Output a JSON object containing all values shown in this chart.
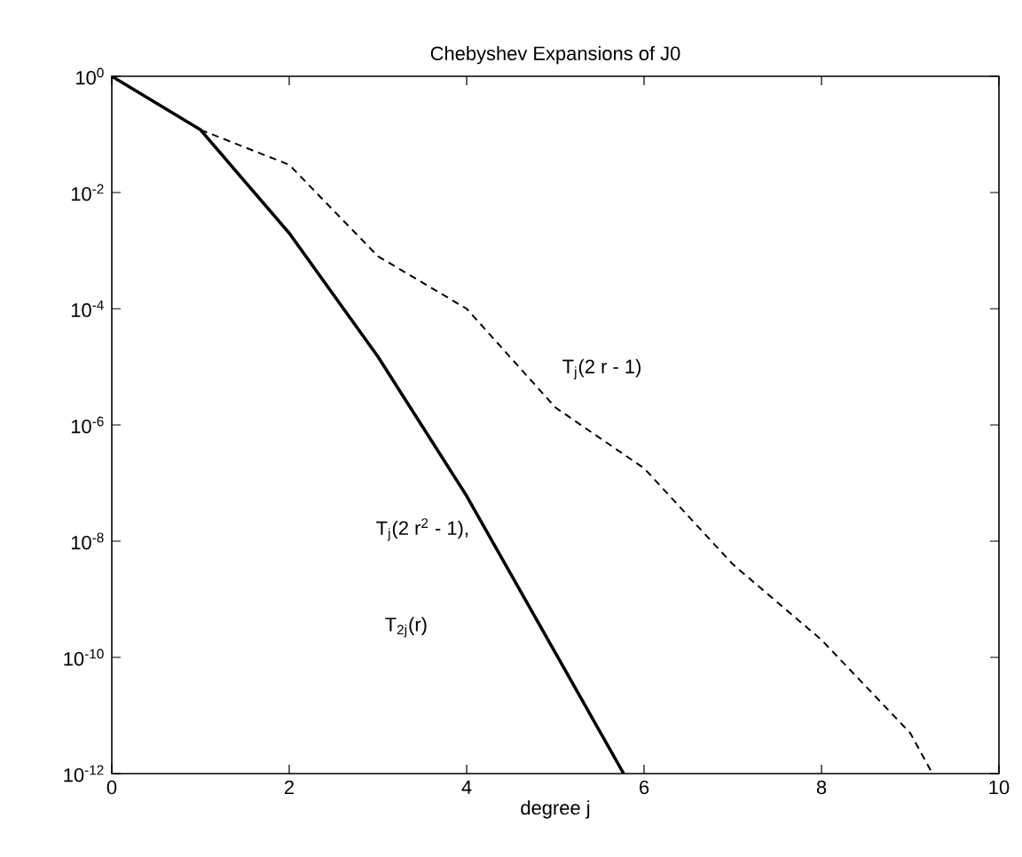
{
  "chart_data": {
    "type": "line",
    "title": "Chebyshev Expansions of J0",
    "xlabel": "degree j",
    "log": "y",
    "grid": false,
    "marker": "none",
    "xlim": [
      0,
      10
    ],
    "xticks": [
      0,
      2,
      4,
      6,
      8,
      10
    ],
    "ylim": [
      1e-12,
      1
    ],
    "yticks": [
      {
        "value": 1e-12,
        "label": "10$^{-12}$"
      },
      {
        "value": 1e-10,
        "label": "10$^{-10}$"
      },
      {
        "value": 1e-08,
        "label": "10$^{-8}$"
      },
      {
        "value": 1e-06,
        "label": "10$^{-6}$"
      },
      {
        "value": 0.0001,
        "label": "10$^{-4}$"
      },
      {
        "value": 0.01,
        "label": "10$^{-2}$"
      },
      {
        "value": 1,
        "label": "10$^{0}$"
      }
    ],
    "series": [
      {
        "color": "#000000",
        "line_style": "solid",
        "x": [
          0,
          1,
          2,
          3,
          4,
          5,
          5.77
        ],
        "values": [
          1,
          0.12,
          0.002,
          1.5e-05,
          6e-08,
          1.2e-10,
          1e-12
        ]
      },
      {
        "color": "#000000",
        "line_style": "dashed",
        "x": [
          1,
          2,
          3,
          4,
          5,
          6,
          7,
          8,
          9,
          9.25
        ],
        "values": [
          0.12,
          0.03,
          0.0008,
          0.0001,
          2e-06,
          1.8e-07,
          4e-09,
          2e-10,
          5e-12,
          1e-12
        ]
      }
    ],
    "annotations": [
      "T$_{j}$(2 r - 1)",
      "T$_{j}$(2 r$^{2}$ - 1),",
      "T$_{2j}$(r)"
    ]
  }
}
